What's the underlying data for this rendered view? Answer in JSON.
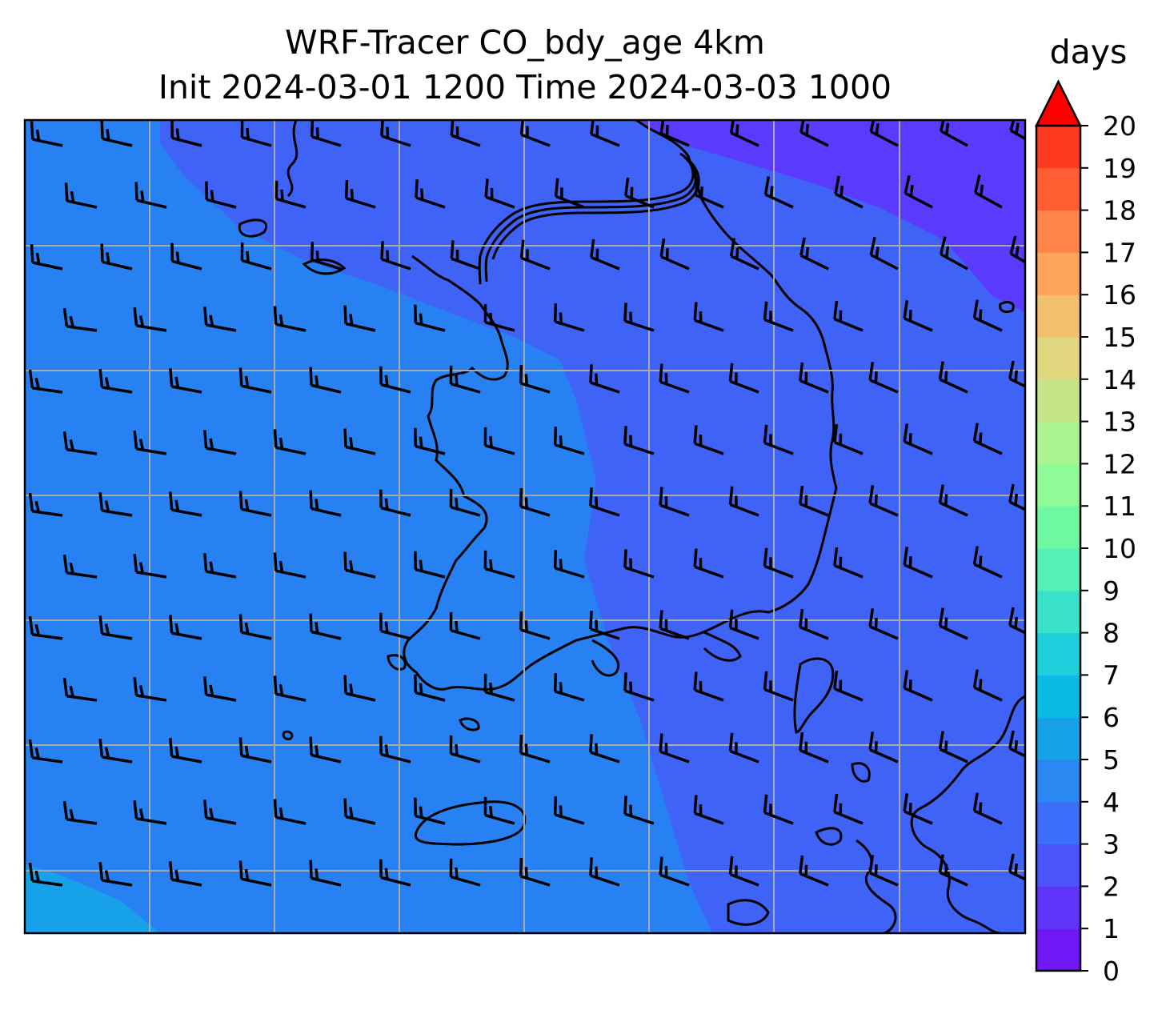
{
  "title": {
    "line1": "WRF-Tracer CO_bdy_age 4km",
    "line2": "Init 2024-03-01 1200 Time 2024-03-03 1000"
  },
  "colorbar": {
    "unit_label": "days",
    "ticks": [
      "0",
      "1",
      "2",
      "3",
      "4",
      "5",
      "6",
      "7",
      "8",
      "9",
      "10",
      "11",
      "12",
      "13",
      "14",
      "15",
      "16",
      "17",
      "18",
      "19",
      "20"
    ],
    "colors": [
      "#6f17f5",
      "#5f35fa",
      "#4b54fb",
      "#3c6ef9",
      "#2b87f1",
      "#17a2e8",
      "#0bbbe4",
      "#1fcedb",
      "#3ae2cc",
      "#55f0b5",
      "#6ff8a2",
      "#8ffa96",
      "#abf48f",
      "#c8e488",
      "#e1d680",
      "#f2bf6e",
      "#fea35a",
      "#ff844a",
      "#ff5e33",
      "#ff3a20",
      "#ff1410"
    ],
    "extend": "max",
    "extend_color": "#ff0000"
  },
  "map": {
    "field_colors": {
      "band_2_3": "#3f63f7",
      "band_3_4": "#2881f3",
      "band_4_5": "#17a1ea",
      "band_1_2": "#5a3afc",
      "coast": "#000000",
      "grid": "#a9a9a9"
    },
    "wind_barbs": "westerly, ~15-20 kt"
  }
}
